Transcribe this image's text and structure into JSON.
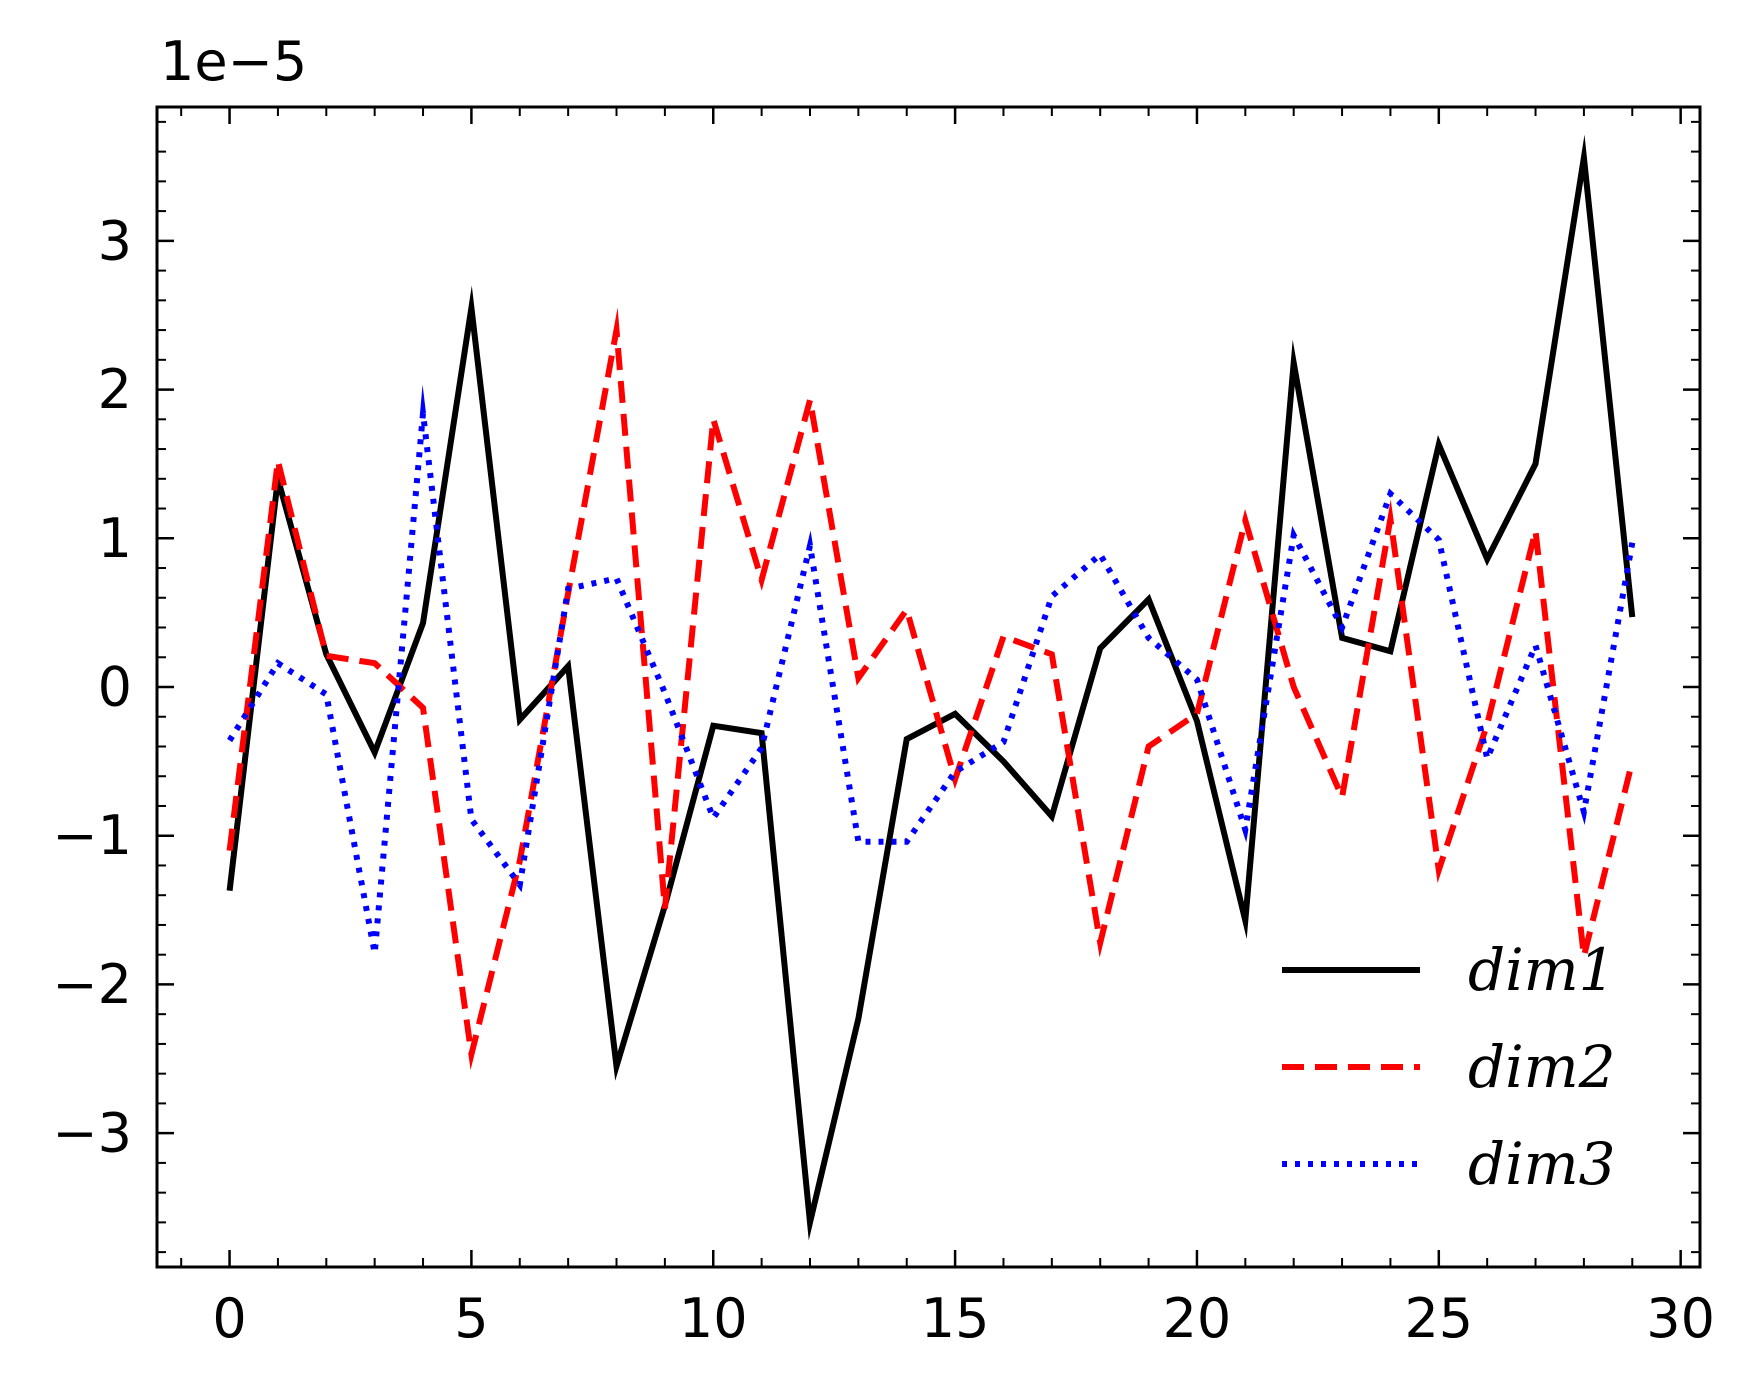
{
  "chart_data": {
    "type": "line",
    "x": [
      0,
      1,
      2,
      3,
      4,
      5,
      6,
      7,
      8,
      9,
      10,
      11,
      12,
      13,
      14,
      15,
      16,
      17,
      18,
      19,
      20,
      21,
      22,
      23,
      24,
      25,
      26,
      27,
      28,
      29
    ],
    "series": [
      {
        "name": "dim1",
        "color": "#000000",
        "style": "solid",
        "values": [
          -1.37,
          1.4,
          0.22,
          -0.44,
          0.43,
          2.55,
          -0.22,
          0.14,
          -2.55,
          -1.47,
          -0.26,
          -0.31,
          -3.6,
          -2.23,
          -0.35,
          -0.18,
          -0.5,
          -0.87,
          0.26,
          0.59,
          -0.23,
          -1.57,
          2.18,
          0.33,
          0.24,
          1.63,
          0.86,
          1.5,
          3.56,
          0.47
        ]
      },
      {
        "name": "dim2",
        "color": "#ff0000",
        "style": "dashed",
        "values": [
          -1.1,
          1.52,
          0.21,
          0.16,
          -0.14,
          -2.47,
          -1.17,
          0.63,
          2.4,
          -1.49,
          1.8,
          0.72,
          1.93,
          0.06,
          0.52,
          -0.62,
          0.34,
          0.22,
          -1.72,
          -0.4,
          -0.18,
          1.12,
          0.0,
          -0.74,
          1.13,
          -1.23,
          -0.25,
          1.05,
          -1.81,
          -0.5
        ]
      },
      {
        "name": "dim3",
        "color": "#0000ff",
        "style": "dotted",
        "values": [
          -0.36,
          0.16,
          -0.05,
          -1.79,
          1.84,
          -0.89,
          -1.33,
          0.66,
          0.73,
          -0.04,
          -0.88,
          -0.41,
          0.95,
          -1.04,
          -1.04,
          -0.57,
          -0.37,
          0.61,
          0.89,
          0.33,
          0.05,
          -0.96,
          1.02,
          0.4,
          1.3,
          0.99,
          -0.48,
          0.28,
          -0.84,
          0.97
        ]
      }
    ],
    "offset_text": "1e−5",
    "xlim": [
      -1.5,
      30.4
    ],
    "ylim": [
      -3.9,
      3.9
    ],
    "x_ticks": [
      0,
      5,
      10,
      15,
      20,
      25,
      30
    ],
    "x_tick_labels": [
      "0",
      "5",
      "10",
      "15",
      "20",
      "25",
      "30"
    ],
    "y_ticks": [
      -3,
      -2,
      -1,
      0,
      1,
      2,
      3
    ],
    "y_tick_labels": [
      "−3",
      "−2",
      "−1",
      "0",
      "1",
      "2",
      "3"
    ],
    "x_minor_step": 1,
    "y_minor_step": 0.2,
    "grid": false,
    "legend": "lower-right"
  }
}
